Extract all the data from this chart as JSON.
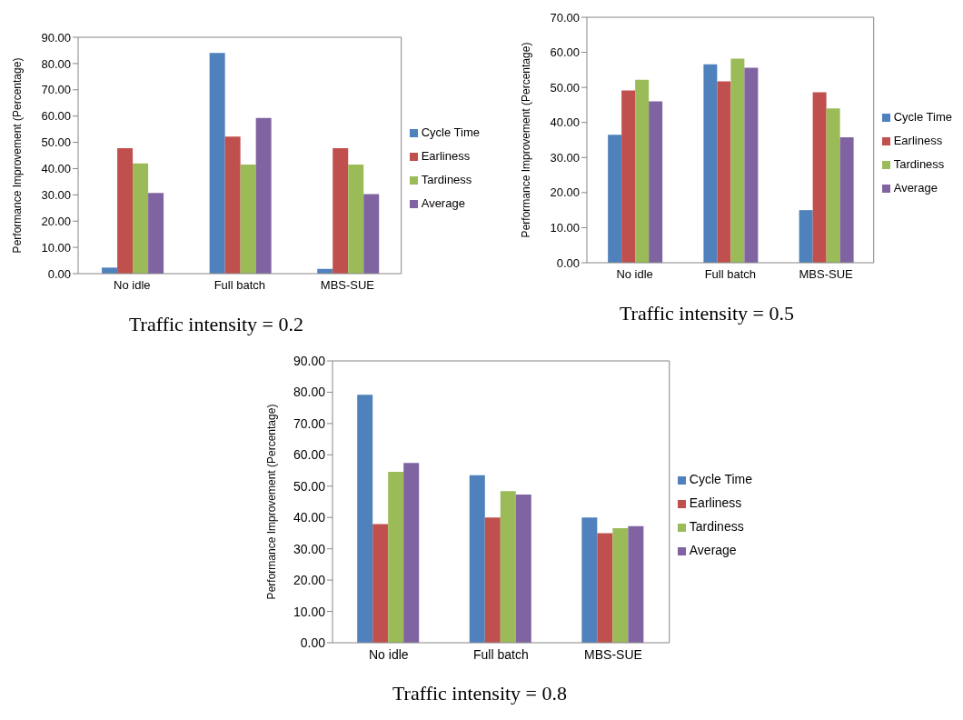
{
  "chart_data": [
    {
      "type": "bar",
      "title": "Traffic intensity = 0.2",
      "ylabel": "Performance Improvement (Percentage)",
      "categories": [
        "No idle",
        "Full batch",
        "MBS-SUE"
      ],
      "series": [
        {
          "name": "Cycle Time",
          "color": "#4f81bd",
          "values": [
            2.3,
            84.0,
            1.8
          ]
        },
        {
          "name": "Earliness",
          "color": "#c0504d",
          "values": [
            47.8,
            52.2,
            47.8
          ]
        },
        {
          "name": "Tardiness",
          "color": "#9bbb59",
          "values": [
            42.0,
            41.5,
            41.5
          ]
        },
        {
          "name": "Average",
          "color": "#8064a2",
          "values": [
            30.7,
            59.3,
            30.3
          ]
        }
      ],
      "ylim": [
        0,
        90
      ],
      "yticks": [
        {
          "value": 0,
          "label": "0.00"
        },
        {
          "value": 10,
          "label": "10.00"
        },
        {
          "value": 20,
          "label": "20.00"
        },
        {
          "value": 30,
          "label": "30.00"
        },
        {
          "value": 40,
          "label": "40.00"
        },
        {
          "value": 50,
          "label": "50.00"
        },
        {
          "value": 60,
          "label": "60.00"
        },
        {
          "value": 70,
          "label": "70.00"
        },
        {
          "value": 80,
          "label": "80.00"
        },
        {
          "value": 90,
          "label": "90.00"
        }
      ],
      "grid": false,
      "legend": "right"
    },
    {
      "type": "bar",
      "title": "Traffic intensity = 0.5",
      "ylabel": "Performance Improvement (Percentage)",
      "categories": [
        "No idle",
        "Full batch",
        "MBS-SUE"
      ],
      "series": [
        {
          "name": "Cycle Time",
          "color": "#4f81bd",
          "values": [
            36.5,
            56.6,
            15.0
          ]
        },
        {
          "name": "Earliness",
          "color": "#c0504d",
          "values": [
            49.1,
            51.7,
            48.6
          ]
        },
        {
          "name": "Tardiness",
          "color": "#9bbb59",
          "values": [
            52.2,
            58.2,
            44.0
          ]
        },
        {
          "name": "Average",
          "color": "#8064a2",
          "values": [
            46.0,
            55.6,
            35.8
          ]
        }
      ],
      "ylim": [
        0,
        70
      ],
      "yticks": [
        {
          "value": 0,
          "label": "0.00"
        },
        {
          "value": 10,
          "label": "10.00"
        },
        {
          "value": 20,
          "label": "20.00"
        },
        {
          "value": 30,
          "label": "30.00"
        },
        {
          "value": 40,
          "label": "40.00"
        },
        {
          "value": 50,
          "label": "50.00"
        },
        {
          "value": 60,
          "label": "60.00"
        },
        {
          "value": 70,
          "label": "70.00"
        }
      ],
      "grid": false,
      "legend": "right"
    },
    {
      "type": "bar",
      "title": "Traffic intensity = 0.8",
      "ylabel": "Performance Improvement (Percentage)",
      "categories": [
        "No idle",
        "Full batch",
        "MBS-SUE"
      ],
      "series": [
        {
          "name": "Cycle Time",
          "color": "#4f81bd",
          "values": [
            79.2,
            53.5,
            40.0
          ]
        },
        {
          "name": "Earliness",
          "color": "#c0504d",
          "values": [
            37.9,
            40.0,
            35.0
          ]
        },
        {
          "name": "Tardiness",
          "color": "#9bbb59",
          "values": [
            54.6,
            48.4,
            36.6
          ]
        },
        {
          "name": "Average",
          "color": "#8064a2",
          "values": [
            57.4,
            47.3,
            37.2
          ]
        }
      ],
      "ylim": [
        0,
        90
      ],
      "yticks": [
        {
          "value": 0,
          "label": "0.00"
        },
        {
          "value": 10,
          "label": "10.00"
        },
        {
          "value": 20,
          "label": "20.00"
        },
        {
          "value": 30,
          "label": "30.00"
        },
        {
          "value": 40,
          "label": "40.00"
        },
        {
          "value": 50,
          "label": "50.00"
        },
        {
          "value": 60,
          "label": "60.00"
        },
        {
          "value": 70,
          "label": "70.00"
        },
        {
          "value": 80,
          "label": "80.00"
        },
        {
          "value": 90,
          "label": "90.00"
        }
      ],
      "grid": false,
      "legend": "right"
    }
  ]
}
